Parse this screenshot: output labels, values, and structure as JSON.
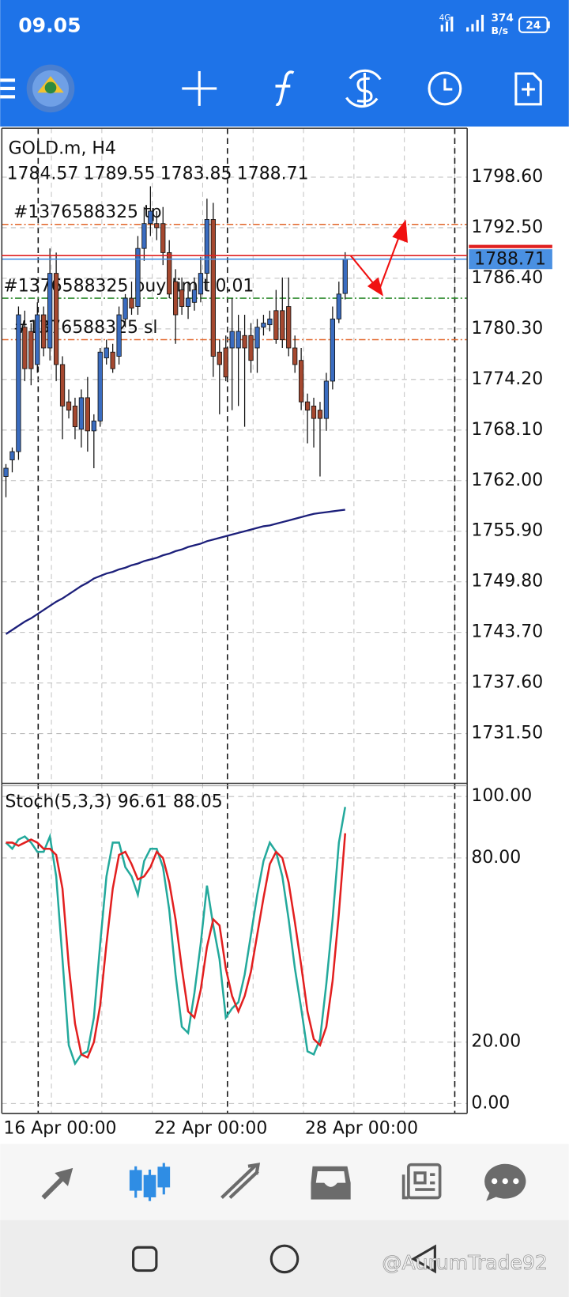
{
  "status_bar": {
    "time": "09.05",
    "network": "4G",
    "speed": "374",
    "speed_unit": "B/s",
    "battery": "24"
  },
  "watermark": "@AurumTrade92",
  "chart_data": [
    {
      "type": "candlestick",
      "title": "GOLD.m, H4",
      "categories": [
        "16 Apr 00:00",
        null,
        null,
        null,
        null,
        null,
        null,
        null,
        null,
        null,
        null,
        null,
        null,
        null,
        null,
        null,
        null,
        null,
        null,
        null,
        null,
        null,
        null,
        null,
        "22 Apr 00:00",
        null,
        null,
        null,
        null,
        null,
        null,
        null,
        null,
        null,
        null,
        null,
        null,
        null,
        null,
        null,
        null,
        null,
        null,
        null,
        null,
        null,
        null,
        null,
        "28 Apr 00:00",
        null,
        null,
        null,
        null,
        null,
        null
      ],
      "open": [
        1762.5,
        1764.5,
        1765.5,
        1780.5,
        1780.0,
        1776.0,
        1782.0,
        1778.0,
        1787.0,
        1776.0,
        1771.5,
        1771.0,
        1768.2,
        1772.0,
        1768.0,
        1769.2,
        1776.8,
        1777.5,
        1777.0,
        1781.5,
        1784.0,
        1783.0,
        1790.0,
        1793.0,
        1793.0,
        1793.0,
        1789.5,
        1786.0,
        1785.0,
        1783.0,
        1783.5,
        1784.5,
        1787.0,
        1793.5,
        1777.5,
        1778.0,
        1778.0,
        1778.0,
        1779.5,
        1779.5,
        1778.0,
        1780.5,
        1780.8,
        1782.5,
        1782.5,
        1783.0,
        1778.0,
        1776.5,
        1771.5,
        1771.0,
        1770.5,
        1769.5,
        1774.0,
        1781.5,
        1784.57
      ],
      "high": [
        1764.0,
        1766.0,
        1783.0,
        1782.5,
        1781.0,
        1783.5,
        1783.0,
        1790.0,
        1789.5,
        1777.0,
        1773.0,
        1772.0,
        1773.0,
        1774.5,
        1770.0,
        1778.0,
        1779.0,
        1778.5,
        1783.0,
        1784.5,
        1786.0,
        1791.5,
        1795.0,
        1797.5,
        1794.5,
        1795.0,
        1791.0,
        1787.5,
        1786.5,
        1786.0,
        1786.5,
        1789.0,
        1796.0,
        1795.5,
        1779.0,
        1779.5,
        1784.0,
        1782.0,
        1782.0,
        1781.0,
        1781.5,
        1782.0,
        1782.5,
        1785.0,
        1786.5,
        1786.5,
        1779.5,
        1778.0,
        1772.5,
        1772.0,
        1771.5,
        1775.0,
        1783.0,
        1786.0,
        1789.55
      ],
      "low": [
        1760.0,
        1763.0,
        1764.5,
        1774.0,
        1773.5,
        1775.0,
        1777.0,
        1776.5,
        1774.0,
        1767.0,
        1769.5,
        1767.0,
        1766.0,
        1765.5,
        1763.5,
        1768.5,
        1776.0,
        1775.0,
        1776.0,
        1780.5,
        1782.0,
        1782.0,
        1788.5,
        1791.5,
        1791.0,
        1788.0,
        1784.0,
        1778.5,
        1782.0,
        1781.5,
        1782.5,
        1783.5,
        1785.0,
        1774.5,
        1770.0,
        1774.0,
        1770.5,
        1771.0,
        1768.5,
        1775.0,
        1775.0,
        1779.5,
        1780.0,
        1778.5,
        1778.0,
        1777.0,
        1775.0,
        1770.5,
        1766.5,
        1766.0,
        1762.5,
        1768.0,
        1773.0,
        1781.0,
        1783.85
      ],
      "close": [
        1763.5,
        1765.5,
        1782.0,
        1775.5,
        1775.5,
        1782.0,
        1778.0,
        1787.0,
        1776.0,
        1771.0,
        1770.5,
        1768.5,
        1772.0,
        1768.0,
        1769.2,
        1777.5,
        1778.0,
        1775.5,
        1782.0,
        1784.0,
        1782.8,
        1790.0,
        1793.0,
        1794.5,
        1792.5,
        1789.5,
        1784.5,
        1782.0,
        1783.0,
        1784.0,
        1785.0,
        1787.0,
        1793.5,
        1777.0,
        1776.0,
        1774.5,
        1780.0,
        1780.0,
        1778.0,
        1776.5,
        1780.5,
        1781.0,
        1781.5,
        1779.0,
        1779.0,
        1778.0,
        1776.0,
        1771.5,
        1770.5,
        1769.5,
        1769.5,
        1774.0,
        1781.5,
        1784.5,
        1788.71
      ],
      "up_color": "#3a6cc0",
      "down_color": "#a5482f",
      "overlay": {
        "color": "#1c1f7a",
        "values": [
          1743.5,
          1744.0,
          1744.5,
          1745.0,
          1745.4,
          1745.9,
          1746.4,
          1746.9,
          1747.4,
          1747.8,
          1748.3,
          1748.8,
          1749.3,
          1749.7,
          1750.2,
          1750.5,
          1750.8,
          1751.0,
          1751.3,
          1751.5,
          1751.8,
          1752.0,
          1752.3,
          1752.5,
          1752.7,
          1753.0,
          1753.2,
          1753.5,
          1753.7,
          1754.0,
          1754.2,
          1754.4,
          1754.7,
          1754.9,
          1755.1,
          1755.3,
          1755.5,
          1755.7,
          1755.9,
          1756.1,
          1756.3,
          1756.5,
          1756.6,
          1756.8,
          1757.0,
          1757.2,
          1757.4,
          1757.6,
          1757.8,
          1758.0,
          1758.1,
          1758.2,
          1758.3,
          1758.4,
          1758.5
        ]
      },
      "levels": [
        {
          "label": "#1376588325 tp",
          "value": 1792.9,
          "color": "#e2662a"
        },
        {
          "label": "#1376588325 buy limit 0.01",
          "value": 1784.0,
          "color": "#2e8b2e"
        },
        {
          "label": "#1376588325 sl",
          "value": 1779.0,
          "color": "#e2662a"
        }
      ],
      "last_price_color": "#4a90e2",
      "ylim": [
        1725.5,
        1804.5
      ],
      "yticks": [
        {
          "value": 1798.6,
          "label": "1798.60"
        },
        {
          "value": 1792.5,
          "label": "1792.50"
        },
        {
          "value": 1786.4,
          "label": "1786.40"
        },
        {
          "value": 1780.3,
          "label": "1780.30"
        },
        {
          "value": 1774.2,
          "label": "1774.20"
        },
        {
          "value": 1768.1,
          "label": "1768.10"
        },
        {
          "value": 1762.0,
          "label": "1762.00"
        },
        {
          "value": 1755.9,
          "label": "1755.90"
        },
        {
          "value": 1749.8,
          "label": "1749.80"
        },
        {
          "value": 1743.7,
          "label": "1743.70"
        },
        {
          "value": 1737.6,
          "label": "1737.60"
        },
        {
          "value": 1731.5,
          "label": "1731.50"
        }
      ],
      "grid": true
    },
    {
      "type": "line",
      "title": "Stoch(5,3,3)",
      "series": [
        {
          "color": "#23a99c",
          "values": [
            85,
            83,
            86,
            87,
            85,
            82,
            82,
            87,
            74,
            47,
            19,
            13,
            16,
            17,
            28,
            52,
            74,
            85,
            85,
            77,
            74,
            68,
            79,
            83,
            83,
            77,
            63,
            42,
            25,
            23,
            36,
            52,
            71,
            58,
            47,
            28,
            31,
            33,
            42,
            55,
            68,
            79,
            85,
            82,
            74,
            60,
            44,
            31,
            17,
            16,
            21,
            39,
            60,
            85,
            96.61
          ]
        },
        {
          "color": "#e21f1f",
          "values": [
            85,
            85,
            84,
            85,
            86,
            85,
            83,
            83,
            81,
            70,
            45,
            26,
            16,
            15,
            20,
            32,
            52,
            70,
            81,
            82,
            78,
            73,
            74,
            77,
            82,
            80,
            72,
            60,
            44,
            30,
            28,
            37,
            51,
            60,
            58,
            44,
            35,
            30,
            35,
            43,
            55,
            67,
            78,
            82,
            80,
            72,
            59,
            45,
            30,
            21,
            19,
            25,
            40,
            62,
            88.05
          ]
        }
      ],
      "ylim": [
        -3.2,
        103.5
      ],
      "yticks": [
        {
          "value": 100,
          "label": "100.00"
        },
        {
          "value": 80,
          "label": "80.00"
        },
        {
          "value": 20,
          "label": "20.00"
        },
        {
          "value": 0,
          "label": "0.00"
        }
      ],
      "grid": true
    }
  ]
}
